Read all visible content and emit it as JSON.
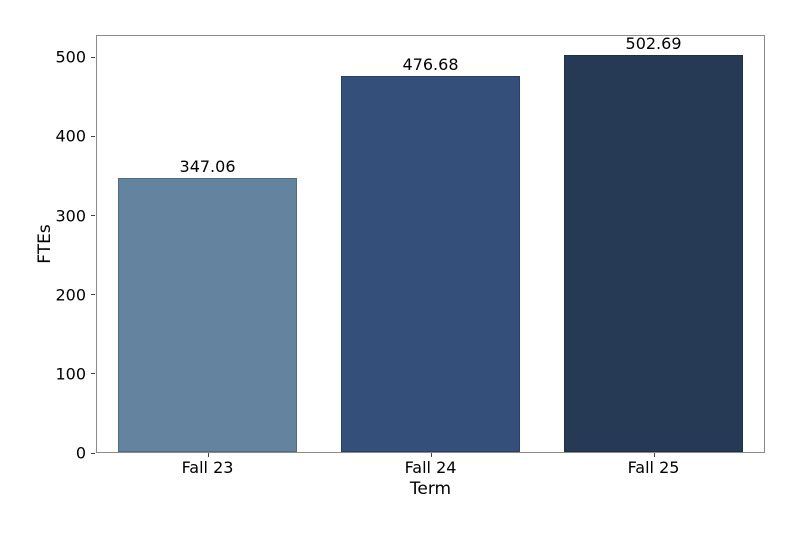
{
  "chart_data": {
    "type": "bar",
    "title": "",
    "xlabel": "Term",
    "ylabel": "FTEs",
    "categories": [
      "Fall 23",
      "Fall 24",
      "Fall 25"
    ],
    "values": [
      347.06,
      476.68,
      502.69
    ],
    "bar_labels": [
      "347.06",
      "476.68",
      "502.69"
    ],
    "bar_colors": [
      "#64839f",
      "#34507a",
      "#263a55"
    ],
    "yticks": [
      0,
      100,
      200,
      300,
      400,
      500
    ],
    "ytick_labels": [
      "0",
      "100",
      "200",
      "300",
      "400",
      "500"
    ],
    "ylim": [
      0,
      528
    ],
    "bar_width_fraction": 0.8,
    "grid": false,
    "legend": "none",
    "colors": {
      "spine": "#8a8a8a",
      "tick": "#444444",
      "text": "#000000",
      "background": "#ffffff"
    }
  }
}
